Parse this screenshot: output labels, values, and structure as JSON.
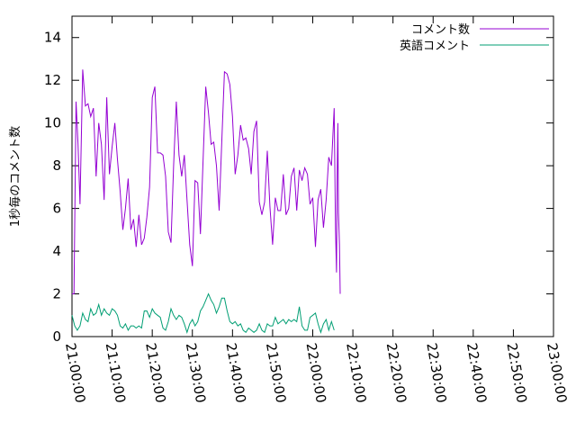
{
  "chart_data": {
    "type": "line",
    "xlabel": "",
    "ylabel": "1秒毎のコメント数",
    "ylim": [
      0,
      15
    ],
    "xlim": [
      "21:00:00",
      "23:00:00"
    ],
    "y_ticks": [
      0,
      2,
      4,
      6,
      8,
      10,
      12,
      14
    ],
    "x_ticks": [
      "21:00:00",
      "21:10:00",
      "21:20:00",
      "21:30:00",
      "21:40:00",
      "21:50:00",
      "22:00:00",
      "22:10:00",
      "22:20:00",
      "22:30:00",
      "22:40:00",
      "22:50:00",
      "23:00:00"
    ],
    "grid": false,
    "legend_position": "top-right",
    "series": [
      {
        "name": "コメント数",
        "color": "#9400d3",
        "points": [
          [
            "21:00:00",
            2.0
          ],
          [
            "21:00:30",
            2.0
          ],
          [
            "21:01:00",
            11.0
          ],
          [
            "21:01:30",
            9.0
          ],
          [
            "21:02:00",
            6.2
          ],
          [
            "21:02:40",
            12.5
          ],
          [
            "21:03:20",
            10.8
          ],
          [
            "21:04:00",
            10.9
          ],
          [
            "21:04:40",
            10.3
          ],
          [
            "21:05:20",
            10.7
          ],
          [
            "21:06:00",
            7.5
          ],
          [
            "21:06:40",
            10.0
          ],
          [
            "21:07:20",
            9.0
          ],
          [
            "21:08:00",
            6.4
          ],
          [
            "21:08:40",
            11.2
          ],
          [
            "21:09:20",
            7.6
          ],
          [
            "21:10:00",
            8.9
          ],
          [
            "21:10:40",
            10.0
          ],
          [
            "21:11:20",
            8.3
          ],
          [
            "21:12:00",
            6.8
          ],
          [
            "21:12:40",
            5.0
          ],
          [
            "21:13:20",
            6.0
          ],
          [
            "21:14:00",
            7.4
          ],
          [
            "21:14:40",
            5.0
          ],
          [
            "21:15:20",
            5.5
          ],
          [
            "21:16:00",
            4.2
          ],
          [
            "21:16:40",
            5.7
          ],
          [
            "21:17:20",
            4.3
          ],
          [
            "21:18:00",
            4.6
          ],
          [
            "21:18:40",
            5.6
          ],
          [
            "21:19:20",
            7.0
          ],
          [
            "21:20:00",
            11.2
          ],
          [
            "21:20:40",
            11.7
          ],
          [
            "21:21:20",
            8.6
          ],
          [
            "21:22:00",
            8.6
          ],
          [
            "21:22:40",
            8.5
          ],
          [
            "21:23:20",
            7.5
          ],
          [
            "21:24:00",
            4.9
          ],
          [
            "21:24:40",
            4.4
          ],
          [
            "21:25:20",
            8.0
          ],
          [
            "21:26:00",
            11.0
          ],
          [
            "21:26:40",
            8.5
          ],
          [
            "21:27:20",
            7.5
          ],
          [
            "21:28:00",
            8.5
          ],
          [
            "21:28:40",
            6.4
          ],
          [
            "21:29:20",
            4.3
          ],
          [
            "21:30:00",
            3.3
          ],
          [
            "21:30:40",
            7.3
          ],
          [
            "21:31:20",
            7.2
          ],
          [
            "21:32:00",
            4.8
          ],
          [
            "21:32:40",
            8.2
          ],
          [
            "21:33:20",
            11.7
          ],
          [
            "21:34:00",
            10.5
          ],
          [
            "21:34:40",
            9.0
          ],
          [
            "21:35:20",
            9.1
          ],
          [
            "21:36:00",
            8.0
          ],
          [
            "21:36:40",
            5.9
          ],
          [
            "21:37:20",
            9.1
          ],
          [
            "21:38:00",
            12.4
          ],
          [
            "21:38:40",
            12.3
          ],
          [
            "21:39:20",
            11.8
          ],
          [
            "21:40:00",
            10.3
          ],
          [
            "21:40:40",
            7.6
          ],
          [
            "21:41:20",
            8.5
          ],
          [
            "21:42:00",
            9.9
          ],
          [
            "21:42:40",
            9.2
          ],
          [
            "21:43:20",
            9.3
          ],
          [
            "21:44:00",
            8.8
          ],
          [
            "21:44:40",
            7.6
          ],
          [
            "21:45:20",
            9.6
          ],
          [
            "21:46:00",
            10.1
          ],
          [
            "21:46:40",
            6.3
          ],
          [
            "21:47:20",
            5.7
          ],
          [
            "21:48:00",
            6.3
          ],
          [
            "21:48:40",
            8.7
          ],
          [
            "21:49:20",
            6.1
          ],
          [
            "21:50:00",
            4.3
          ],
          [
            "21:50:40",
            6.5
          ],
          [
            "21:51:20",
            5.9
          ],
          [
            "21:52:00",
            5.9
          ],
          [
            "21:52:40",
            7.6
          ],
          [
            "21:53:20",
            5.7
          ],
          [
            "21:54:00",
            6.0
          ],
          [
            "21:54:40",
            7.5
          ],
          [
            "21:55:20",
            7.9
          ],
          [
            "21:56:00",
            5.9
          ],
          [
            "21:56:40",
            7.8
          ],
          [
            "21:57:20",
            7.3
          ],
          [
            "21:58:00",
            7.9
          ],
          [
            "21:58:40",
            7.6
          ],
          [
            "21:59:20",
            6.2
          ],
          [
            "22:00:00",
            6.5
          ],
          [
            "22:00:40",
            4.2
          ],
          [
            "22:01:20",
            6.4
          ],
          [
            "22:02:00",
            6.9
          ],
          [
            "22:02:40",
            5.1
          ],
          [
            "22:03:20",
            6.4
          ],
          [
            "22:04:00",
            8.4
          ],
          [
            "22:04:40",
            8.0
          ],
          [
            "22:05:20",
            10.7
          ],
          [
            "22:05:40",
            5.0
          ],
          [
            "22:05:55",
            3.0
          ],
          [
            "22:06:05",
            7.5
          ],
          [
            "22:06:15",
            10.0
          ],
          [
            "22:06:25",
            5.8
          ],
          [
            "22:06:40",
            4.3
          ],
          [
            "22:06:50",
            2.0
          ]
        ]
      },
      {
        "name": "英語コメント",
        "color": "#009e73",
        "points": [
          [
            "21:00:00",
            1.0
          ],
          [
            "21:00:40",
            0.5
          ],
          [
            "21:01:20",
            0.3
          ],
          [
            "21:02:00",
            0.5
          ],
          [
            "21:02:40",
            1.1
          ],
          [
            "21:03:20",
            0.8
          ],
          [
            "21:04:00",
            0.7
          ],
          [
            "21:04:40",
            1.3
          ],
          [
            "21:05:20",
            1.0
          ],
          [
            "21:06:00",
            1.1
          ],
          [
            "21:06:40",
            1.5
          ],
          [
            "21:07:20",
            1.0
          ],
          [
            "21:08:00",
            1.3
          ],
          [
            "21:08:40",
            1.1
          ],
          [
            "21:09:20",
            1.0
          ],
          [
            "21:10:00",
            1.3
          ],
          [
            "21:10:40",
            1.2
          ],
          [
            "21:11:20",
            1.0
          ],
          [
            "21:12:00",
            0.5
          ],
          [
            "21:12:40",
            0.4
          ],
          [
            "21:13:20",
            0.6
          ],
          [
            "21:14:00",
            0.3
          ],
          [
            "21:14:40",
            0.5
          ],
          [
            "21:15:20",
            0.5
          ],
          [
            "21:16:00",
            0.4
          ],
          [
            "21:16:40",
            0.5
          ],
          [
            "21:17:20",
            0.4
          ],
          [
            "21:18:00",
            1.2
          ],
          [
            "21:18:40",
            1.2
          ],
          [
            "21:19:20",
            0.9
          ],
          [
            "21:20:00",
            1.3
          ],
          [
            "21:20:40",
            1.1
          ],
          [
            "21:21:20",
            1.0
          ],
          [
            "21:22:00",
            0.9
          ],
          [
            "21:22:40",
            0.4
          ],
          [
            "21:23:20",
            0.3
          ],
          [
            "21:24:00",
            0.7
          ],
          [
            "21:24:40",
            1.3
          ],
          [
            "21:25:20",
            1.0
          ],
          [
            "21:26:00",
            0.8
          ],
          [
            "21:26:40",
            1.0
          ],
          [
            "21:27:20",
            0.9
          ],
          [
            "21:28:00",
            0.6
          ],
          [
            "21:28:40",
            0.2
          ],
          [
            "21:29:20",
            0.6
          ],
          [
            "21:30:00",
            0.8
          ],
          [
            "21:30:40",
            0.5
          ],
          [
            "21:31:20",
            0.7
          ],
          [
            "21:32:00",
            1.2
          ],
          [
            "21:32:40",
            1.4
          ],
          [
            "21:33:20",
            1.7
          ],
          [
            "21:34:00",
            2.0
          ],
          [
            "21:34:40",
            1.7
          ],
          [
            "21:35:20",
            1.5
          ],
          [
            "21:36:00",
            1.1
          ],
          [
            "21:36:40",
            1.4
          ],
          [
            "21:37:20",
            1.8
          ],
          [
            "21:38:00",
            1.8
          ],
          [
            "21:38:40",
            1.2
          ],
          [
            "21:39:20",
            0.7
          ],
          [
            "21:40:00",
            0.6
          ],
          [
            "21:40:40",
            0.7
          ],
          [
            "21:41:20",
            0.5
          ],
          [
            "21:42:00",
            0.6
          ],
          [
            "21:42:40",
            0.3
          ],
          [
            "21:43:20",
            0.2
          ],
          [
            "21:44:00",
            0.4
          ],
          [
            "21:44:40",
            0.3
          ],
          [
            "21:45:20",
            0.2
          ],
          [
            "21:46:00",
            0.3
          ],
          [
            "21:46:40",
            0.6
          ],
          [
            "21:47:20",
            0.3
          ],
          [
            "21:48:00",
            0.2
          ],
          [
            "21:48:40",
            0.6
          ],
          [
            "21:49:20",
            0.5
          ],
          [
            "21:50:00",
            0.5
          ],
          [
            "21:50:40",
            0.9
          ],
          [
            "21:51:20",
            0.6
          ],
          [
            "21:52:00",
            0.7
          ],
          [
            "21:52:40",
            0.8
          ],
          [
            "21:53:20",
            0.6
          ],
          [
            "21:54:00",
            0.8
          ],
          [
            "21:54:40",
            0.7
          ],
          [
            "21:55:20",
            0.8
          ],
          [
            "21:56:00",
            0.7
          ],
          [
            "21:56:40",
            1.4
          ],
          [
            "21:57:20",
            0.5
          ],
          [
            "21:58:00",
            0.3
          ],
          [
            "21:58:40",
            0.3
          ],
          [
            "21:59:20",
            0.9
          ],
          [
            "22:00:00",
            1.0
          ],
          [
            "22:00:40",
            1.1
          ],
          [
            "22:01:20",
            0.6
          ],
          [
            "22:02:00",
            0.2
          ],
          [
            "22:02:40",
            0.6
          ],
          [
            "22:03:20",
            0.8
          ],
          [
            "22:04:00",
            0.3
          ],
          [
            "22:04:40",
            0.7
          ],
          [
            "22:05:20",
            0.3
          ]
        ]
      }
    ],
    "colors": {
      "axes": "#000000",
      "background": "#ffffff"
    }
  }
}
